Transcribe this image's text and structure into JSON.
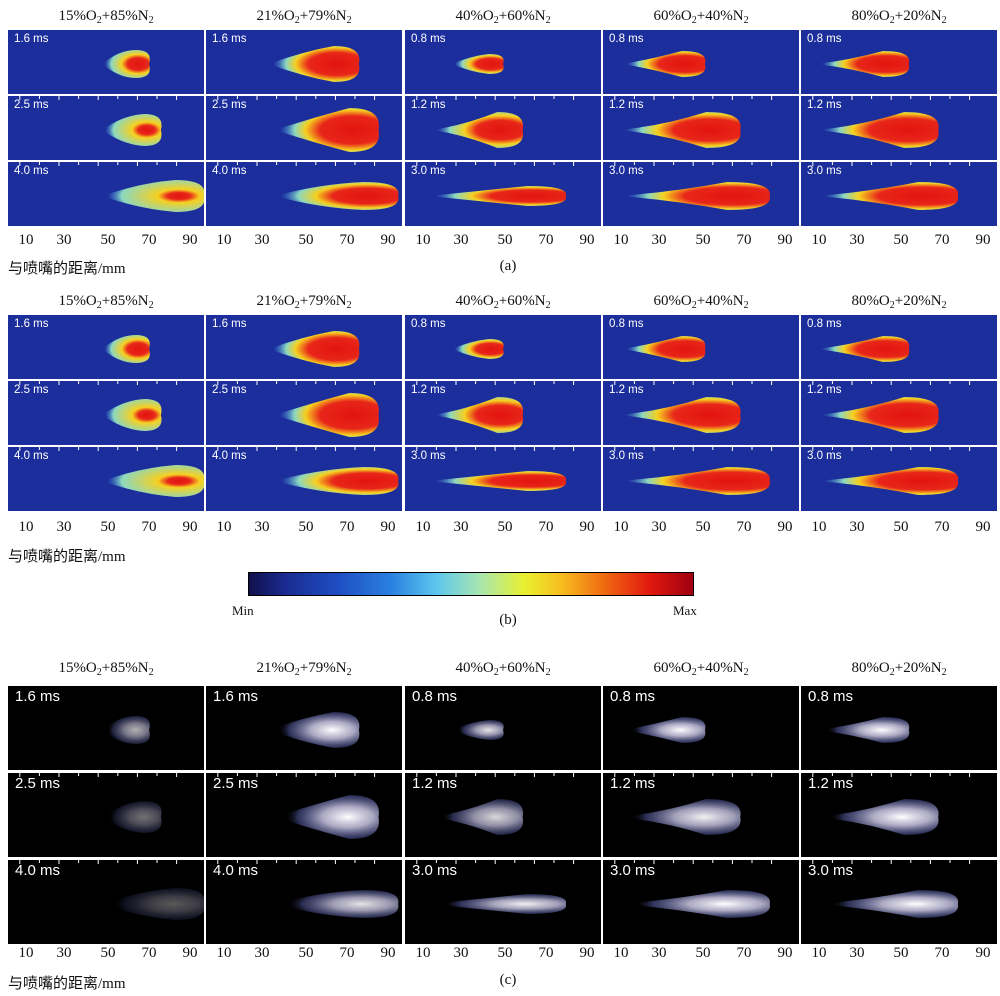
{
  "columns": [
    {
      "pre": "15%O",
      "mid": "+85%N",
      "post": ""
    },
    {
      "pre": "21%O",
      "mid": "+79%N",
      "post": ""
    },
    {
      "pre": "40%O",
      "mid": "+60%N",
      "post": ""
    },
    {
      "pre": "60%O",
      "mid": "+40%N",
      "post": ""
    },
    {
      "pre": "80%O",
      "mid": "+20%N",
      "post": ""
    }
  ],
  "subscript": "2",
  "time_labels": [
    [
      "1.6 ms",
      "2.5 ms",
      "4.0 ms"
    ],
    [
      "1.6 ms",
      "2.5 ms",
      "4.0 ms"
    ],
    [
      "0.8 ms",
      "1.2 ms",
      "3.0 ms"
    ],
    [
      "0.8 ms",
      "1.2 ms",
      "3.0 ms"
    ],
    [
      "0.8 ms",
      "1.2 ms",
      "3.0 ms"
    ]
  ],
  "axis_ticks": [
    "10",
    "30",
    "50",
    "70",
    "90"
  ],
  "axis_label": "与喷嘴的距离/mm",
  "panel_labels": [
    "(a)",
    "(b)",
    "(c)"
  ],
  "colorbar": {
    "min_label": "Min",
    "max_label": "Max"
  }
}
